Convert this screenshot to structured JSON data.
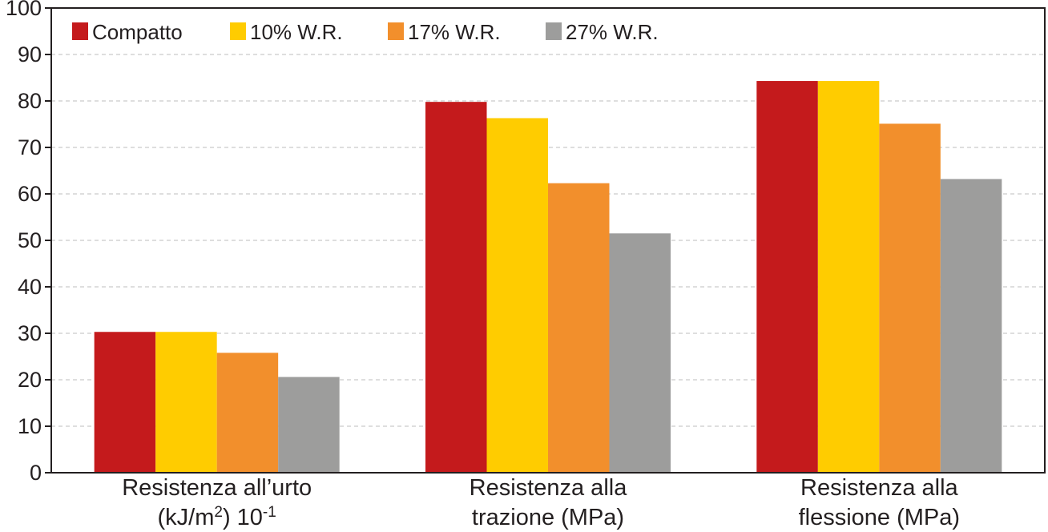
{
  "chart_data": {
    "type": "bar",
    "categories": [
      {
        "lines": [
          "Resistenza all’urto",
          "(kJ/m2) 10-1"
        ],
        "sup": true
      },
      {
        "lines": [
          "Resistenza alla",
          "trazione (MPa)"
        ],
        "sup": false
      },
      {
        "lines": [
          "Resistenza alla",
          "flessione (MPa)"
        ],
        "sup": false
      }
    ],
    "series": [
      {
        "name": "Compatto",
        "color": "#c41a1c",
        "values": [
          30.3,
          79.8,
          84.3
        ]
      },
      {
        "name": "10% W.R.",
        "color": "#ffcc00",
        "values": [
          30.3,
          76.3,
          84.3
        ]
      },
      {
        "name": "17% W.R.",
        "color": "#f28f2c",
        "values": [
          25.8,
          62.3,
          75.1
        ]
      },
      {
        "name": "27% W.R.",
        "color": "#9d9d9c",
        "values": [
          20.6,
          51.5,
          63.2
        ]
      }
    ],
    "ylim": [
      0,
      100
    ],
    "yticks": [
      0,
      10,
      20,
      30,
      40,
      50,
      60,
      70,
      80,
      90,
      100
    ],
    "grid": true,
    "legend_position": "top-left",
    "title": "",
    "xlabel": "",
    "ylabel": ""
  }
}
